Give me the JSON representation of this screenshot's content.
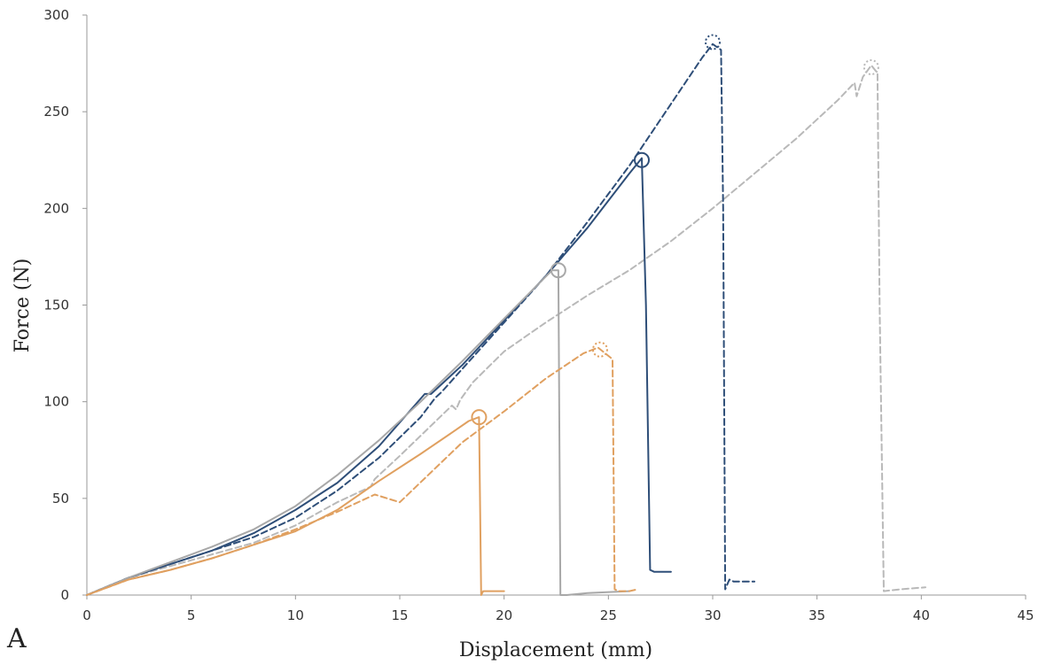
{
  "chart_data": {
    "type": "line",
    "panel_label": "A",
    "title": "",
    "xlabel": "Displacement (mm)",
    "ylabel": "Force (N)",
    "xlim": [
      0,
      45
    ],
    "ylim": [
      0,
      300
    ],
    "xticks": [
      0,
      5,
      10,
      15,
      20,
      25,
      30,
      35,
      40,
      45
    ],
    "yticks": [
      0,
      50,
      100,
      150,
      200,
      250,
      300
    ],
    "grid": false,
    "legend": "none",
    "series": [
      {
        "color": "#b9b9b9",
        "dash": true,
        "x": [
          0,
          2,
          4,
          6,
          8,
          10,
          12,
          13.6,
          13.8,
          15,
          17.5,
          17.7,
          17.9,
          18.5,
          20,
          22,
          24,
          26,
          28,
          30,
          32,
          34,
          36,
          36.8,
          36.9,
          37.2,
          37.6,
          37.9,
          38,
          38.2,
          39,
          40.2
        ],
        "y": [
          0,
          9,
          15,
          21,
          27,
          36,
          48,
          56,
          60,
          72,
          98,
          96,
          101,
          110,
          126,
          141,
          155,
          168,
          183,
          200,
          218,
          236,
          256,
          265,
          258,
          268,
          274,
          270,
          150,
          2,
          3,
          4
        ]
      },
      {
        "color": "#2e4e78",
        "dash": true,
        "x": [
          0,
          2,
          4,
          6,
          8,
          10,
          12,
          14,
          16,
          16.7,
          17,
          18,
          20,
          22,
          24,
          26,
          28,
          29.5,
          30,
          30.4,
          30.5,
          30.6,
          30.8,
          31,
          32
        ],
        "y": [
          0,
          9,
          16,
          23,
          30,
          40,
          54,
          71,
          92,
          102,
          105,
          117,
          141,
          165,
          193,
          222,
          254,
          278,
          285,
          282,
          200,
          3,
          8,
          7,
          7
        ]
      },
      {
        "color": "#2e4e78",
        "dash": false,
        "x": [
          0,
          2,
          4,
          6,
          8,
          10,
          12,
          14,
          16.2,
          16.5,
          18,
          20,
          22,
          24,
          26,
          26.6,
          26.8,
          27,
          27.2,
          28
        ],
        "y": [
          0,
          9,
          16,
          23,
          32,
          44,
          58,
          77,
          104,
          104,
          119,
          142,
          165,
          190,
          218,
          226,
          150,
          13,
          12,
          12
        ]
      },
      {
        "color": "#a8a8a8",
        "dash": false,
        "x": [
          0,
          2,
          4,
          6,
          8,
          10,
          12,
          14,
          16,
          18,
          20,
          22.3,
          22.6,
          22.7,
          23,
          24,
          26
        ],
        "y": [
          0,
          9,
          17,
          25,
          34,
          46,
          62,
          80,
          100,
          121,
          143,
          168,
          168,
          0,
          0,
          1,
          2
        ]
      },
      {
        "color": "#e0a060",
        "dash": true,
        "x": [
          0,
          2,
          4,
          6,
          8,
          10,
          12,
          13.8,
          15,
          18,
          20,
          22,
          23.8,
          24.5,
          25.2,
          25.3,
          25.5,
          26,
          26.4
        ],
        "y": [
          0,
          8,
          13,
          19,
          26,
          34,
          43,
          52,
          48,
          79,
          95,
          112,
          125,
          128,
          122,
          3,
          2,
          2,
          3
        ]
      },
      {
        "color": "#e0a060",
        "dash": false,
        "x": [
          0,
          2,
          4,
          6,
          8,
          10,
          12,
          14,
          16,
          17.5,
          18.3,
          18.8,
          18.9,
          19.0,
          19.5,
          20
        ],
        "y": [
          0,
          8,
          13,
          19,
          26,
          33,
          44,
          59,
          73,
          84,
          90,
          92,
          0,
          2,
          2,
          2
        ]
      }
    ],
    "failure_markers": [
      {
        "x": 18.8,
        "y": 92,
        "color": "#e0a060",
        "dash": false
      },
      {
        "x": 22.6,
        "y": 168,
        "color": "#a8a8a8",
        "dash": false
      },
      {
        "x": 26.6,
        "y": 225,
        "color": "#2e4e78",
        "dash": false
      },
      {
        "x": 24.6,
        "y": 127,
        "color": "#e0a060",
        "dash": true
      },
      {
        "x": 30.0,
        "y": 286,
        "color": "#2e4e78",
        "dash": true
      },
      {
        "x": 37.6,
        "y": 273,
        "color": "#b9b9b9",
        "dash": true
      }
    ]
  }
}
